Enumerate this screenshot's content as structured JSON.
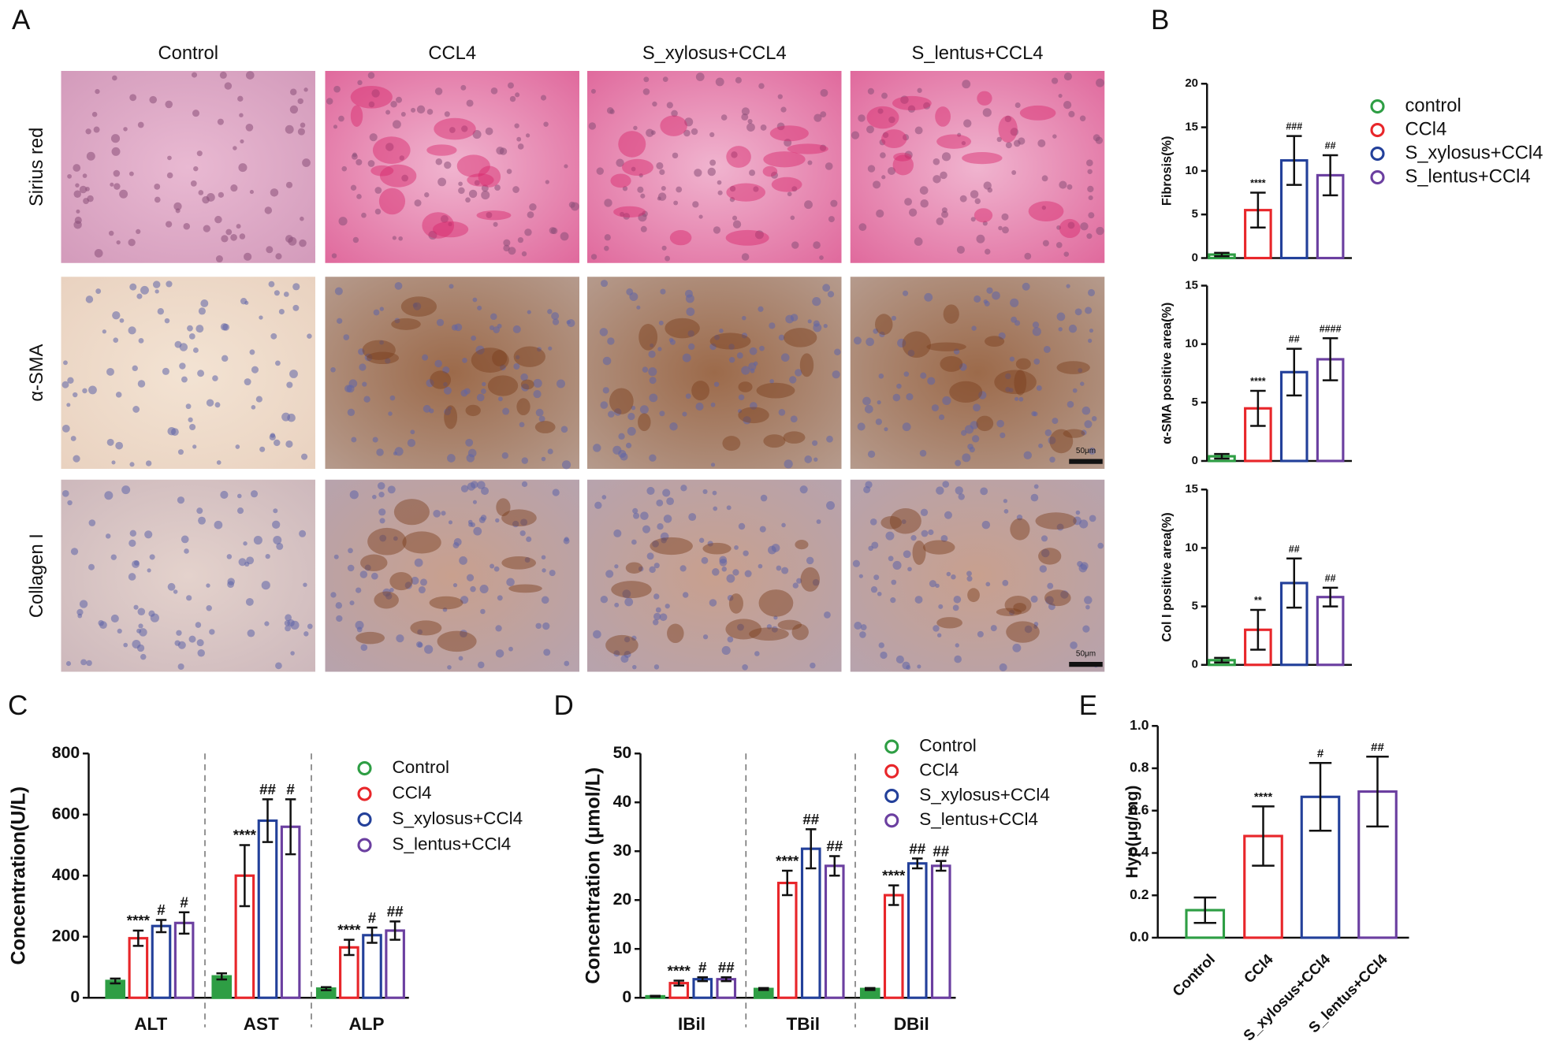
{
  "panel_labels": [
    "A",
    "B",
    "C",
    "D",
    "E"
  ],
  "histology": {
    "columns": [
      "Control",
      "CCL4",
      "S_xylosus+CCL4",
      "S_lentus+CCL4"
    ],
    "rows": [
      "Sirius red",
      "α-SMA",
      "Collagen I"
    ],
    "scale_bar_label": "50μm"
  },
  "chart_data": [
    {
      "type": "bar",
      "ylabel": "Fibrosis(%)",
      "ylim": [
        0,
        20
      ],
      "yticks": [
        0,
        5,
        10,
        15,
        20
      ],
      "legend": "right",
      "series": [
        {
          "name": "control",
          "color": "#2e9e44",
          "values": [
            0.4
          ],
          "errors": [
            0.2
          ],
          "annotations": [
            null
          ]
        },
        {
          "name": "CCl4",
          "color": "#e8262a",
          "values": [
            5.5
          ],
          "errors": [
            2.0
          ],
          "annotations": [
            "****"
          ]
        },
        {
          "name": "S_xylosus+CCl4",
          "color": "#23409a",
          "values": [
            11.2
          ],
          "errors": [
            2.8
          ],
          "annotations": [
            "###"
          ]
        },
        {
          "name": "S_lentus+CCl4",
          "color": "#6b3fa0",
          "values": [
            9.5
          ],
          "errors": [
            2.3
          ],
          "annotations": [
            "##"
          ]
        }
      ]
    },
    {
      "type": "bar",
      "ylabel": "α-SMA positive area(%)",
      "ylim": [
        0,
        15
      ],
      "yticks": [
        0,
        5,
        10,
        15
      ],
      "series": [
        {
          "color": "#2e9e44",
          "values": [
            0.4
          ],
          "errors": [
            0.2
          ],
          "annotations": [
            null
          ]
        },
        {
          "color": "#e8262a",
          "values": [
            4.5
          ],
          "errors": [
            1.5
          ],
          "annotations": [
            "****"
          ]
        },
        {
          "color": "#23409a",
          "values": [
            7.6
          ],
          "errors": [
            2.0
          ],
          "annotations": [
            "##"
          ]
        },
        {
          "color": "#6b3fa0",
          "values": [
            8.7
          ],
          "errors": [
            1.8
          ],
          "annotations": [
            "####"
          ]
        }
      ]
    },
    {
      "type": "bar",
      "ylabel": "Col I positive area(%)",
      "ylim": [
        0,
        15
      ],
      "yticks": [
        0,
        5,
        10,
        15
      ],
      "series": [
        {
          "color": "#2e9e44",
          "values": [
            0.4
          ],
          "errors": [
            0.2
          ],
          "annotations": [
            null
          ]
        },
        {
          "color": "#e8262a",
          "values": [
            3.0
          ],
          "errors": [
            1.7
          ],
          "annotations": [
            "**"
          ]
        },
        {
          "color": "#23409a",
          "values": [
            7.0
          ],
          "errors": [
            2.1
          ],
          "annotations": [
            "##"
          ]
        },
        {
          "color": "#6b3fa0",
          "values": [
            5.8
          ],
          "errors": [
            0.8
          ],
          "annotations": [
            "##"
          ]
        }
      ]
    },
    {
      "type": "bar",
      "ylabel": "Concentration(U/L)",
      "categories": [
        "ALT",
        "AST",
        "ALP"
      ],
      "ylim": [
        0,
        800
      ],
      "yticks": [
        0,
        200,
        400,
        600,
        800
      ],
      "legend": "right",
      "series": [
        {
          "name": "Control",
          "color": "#2e9e44",
          "filled": true,
          "values": [
            55,
            70,
            30
          ],
          "errors": [
            8,
            10,
            5
          ],
          "annotations": [
            null,
            null,
            null
          ]
        },
        {
          "name": "CCl4",
          "color": "#e8262a",
          "values": [
            195,
            400,
            165
          ],
          "errors": [
            25,
            100,
            25
          ],
          "annotations": [
            "****",
            "****",
            "****"
          ]
        },
        {
          "name": "S_xylosus+CCl4",
          "color": "#23409a",
          "values": [
            235,
            580,
            205
          ],
          "errors": [
            20,
            70,
            25
          ],
          "annotations": [
            "#",
            "##",
            "#"
          ]
        },
        {
          "name": "S_lentus+CCl4",
          "color": "#6b3fa0",
          "values": [
            245,
            560,
            220
          ],
          "errors": [
            35,
            90,
            30
          ],
          "annotations": [
            "#",
            "#",
            "##"
          ]
        }
      ]
    },
    {
      "type": "bar",
      "ylabel": "Concentration (μmol/L)",
      "categories": [
        "IBil",
        "TBil",
        "DBil"
      ],
      "ylim": [
        0,
        50
      ],
      "yticks": [
        0,
        10,
        20,
        30,
        40,
        50
      ],
      "legend": "right",
      "series": [
        {
          "name": "Control",
          "color": "#2e9e44",
          "filled": true,
          "values": [
            0.3,
            1.8,
            1.8
          ],
          "errors": [
            0.1,
            0.2,
            0.2
          ],
          "annotations": [
            null,
            null,
            null
          ]
        },
        {
          "name": "CCl4",
          "color": "#e8262a",
          "values": [
            3,
            23.5,
            21
          ],
          "errors": [
            0.5,
            2.5,
            2
          ],
          "annotations": [
            "****",
            "****",
            "****"
          ]
        },
        {
          "name": "S_xylosus+CCl4",
          "color": "#23409a",
          "values": [
            3.8,
            30.5,
            27.5
          ],
          "errors": [
            0.4,
            4,
            1
          ],
          "annotations": [
            "#",
            "##",
            "##"
          ]
        },
        {
          "name": "S_lentus+CCl4",
          "color": "#6b3fa0",
          "values": [
            3.8,
            27,
            27
          ],
          "errors": [
            0.4,
            2,
            1
          ],
          "annotations": [
            "##",
            "##",
            "##"
          ]
        }
      ]
    },
    {
      "type": "bar",
      "ylabel": "Hyp(μg/mg)",
      "categories": [
        "Control",
        "CCl4",
        "S_xylosus+CCl4",
        "S_lentus+CCl4"
      ],
      "values": [
        0.13,
        0.48,
        0.665,
        0.69
      ],
      "errors": [
        0.06,
        0.14,
        0.16,
        0.165
      ],
      "colors": [
        "#2e9e44",
        "#e8262a",
        "#23409a",
        "#6b3fa0"
      ],
      "annotations": [
        null,
        "****",
        "#",
        "##"
      ],
      "ylim": [
        0,
        1
      ],
      "yticks": [
        {
          "value": 0,
          "label": "0.0"
        },
        {
          "value": 0.2,
          "label": "0.2"
        },
        {
          "value": 0.4,
          "label": "0.4"
        },
        {
          "value": 0.6,
          "label": "0.6"
        },
        {
          "value": 0.8,
          "label": "0.8"
        },
        {
          "value": 1,
          "label": "1.0"
        }
      ]
    }
  ]
}
